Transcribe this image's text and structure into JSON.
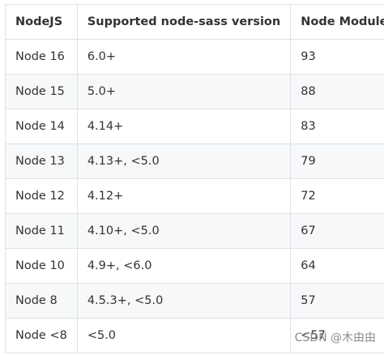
{
  "table": {
    "header": [
      "NodeJS",
      "Supported node-sass version",
      "Node Module"
    ],
    "rows": [
      [
        "Node 16",
        "6.0+",
        "93"
      ],
      [
        "Node 15",
        "5.0+",
        "88"
      ],
      [
        "Node 14",
        "4.14+",
        "83"
      ],
      [
        "Node 13",
        "4.13+, <5.0",
        "79"
      ],
      [
        "Node 12",
        "4.12+",
        "72"
      ],
      [
        "Node 11",
        "4.10+, <5.0",
        "67"
      ],
      [
        "Node 10",
        "4.9+, <6.0",
        "64"
      ],
      [
        "Node 8",
        "4.5.3+, <5.0",
        "57"
      ],
      [
        "Node <8",
        "<5.0",
        "<57"
      ]
    ]
  },
  "watermark": "CSDN @木由由"
}
